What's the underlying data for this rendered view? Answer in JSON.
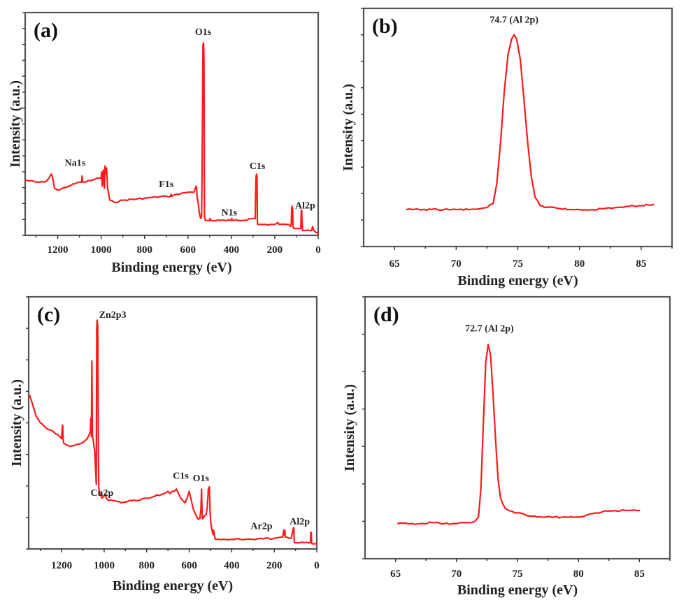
{
  "chart_data": [
    {
      "id": "a",
      "type": "line",
      "panel_label": "(a)",
      "title": "",
      "xlabel": "Binding energy (eV)",
      "ylabel": "Intensity (a.u.)",
      "xlim": [
        1350,
        0
      ],
      "ylim": [
        0,
        1
      ],
      "x_reversed": true,
      "xticks": [
        1200,
        1000,
        800,
        600,
        400,
        200,
        0
      ],
      "xticks_minor": [
        1300,
        1100,
        900,
        700,
        500,
        300,
        100
      ],
      "yticks_count": 14,
      "y_tick_labels": false,
      "grid": false,
      "series_color": "#ff1a1a",
      "series": [
        {
          "name": "survey-a",
          "x": [
            1350,
            1300,
            1260,
            1240,
            1230,
            1225,
            1215,
            1200,
            1150,
            1100,
            1090,
            1088,
            1085,
            1080,
            1040,
            1010,
            1000,
            998,
            995,
            990,
            985,
            982,
            980,
            975,
            970,
            965,
            960,
            940,
            900,
            800,
            700,
            680,
            678,
            675,
            650,
            600,
            580,
            572,
            566,
            562,
            560,
            558,
            552,
            548,
            542,
            537,
            535,
            533,
            531,
            528,
            526,
            524,
            520,
            510,
            500,
            498,
            496,
            490,
            450,
            420,
            400,
            398,
            396,
            390,
            350,
            300,
            290,
            288,
            286,
            284,
            282,
            280,
            278,
            275,
            270,
            240,
            200,
            185,
            180,
            175,
            150,
            135,
            128,
            124,
            122,
            120,
            118,
            116,
            112,
            100,
            90,
            82,
            80,
            78,
            76,
            74,
            72,
            70,
            60,
            40,
            30,
            28,
            26,
            20,
            10,
            5,
            0
          ],
          "y": [
            0.26,
            0.25,
            0.25,
            0.27,
            0.29,
            0.28,
            0.22,
            0.21,
            0.23,
            0.25,
            0.25,
            0.28,
            0.25,
            0.25,
            0.26,
            0.27,
            0.27,
            0.3,
            0.23,
            0.31,
            0.22,
            0.33,
            0.29,
            0.32,
            0.22,
            0.19,
            0.16,
            0.15,
            0.16,
            0.17,
            0.18,
            0.18,
            0.19,
            0.18,
            0.19,
            0.2,
            0.2,
            0.2,
            0.22,
            0.23,
            0.22,
            0.18,
            0.14,
            0.1,
            0.07,
            0.08,
            0.3,
            0.6,
            0.93,
            0.94,
            0.85,
            0.08,
            0.06,
            0.06,
            0.06,
            0.07,
            0.06,
            0.06,
            0.06,
            0.06,
            0.06,
            0.07,
            0.06,
            0.06,
            0.06,
            0.07,
            0.07,
            0.2,
            0.28,
            0.29,
            0.28,
            0.05,
            0.04,
            0.04,
            0.04,
            0.04,
            0.04,
            0.05,
            0.04,
            0.04,
            0.04,
            0.04,
            0.03,
            0.04,
            0.12,
            0.13,
            0.12,
            0.03,
            0.02,
            0.02,
            0.02,
            0.02,
            0.02,
            0.11,
            0.11,
            0.05,
            0.01,
            0.01,
            0.01,
            0.01,
            0.01,
            0.02,
            0.03,
            0.01,
            0.0,
            0.0,
            0.0
          ]
        }
      ],
      "annotations": [
        {
          "text": "O1s",
          "x": 530,
          "y": 0.98
        },
        {
          "text": "Na1s",
          "x": 1120,
          "y": 0.33
        },
        {
          "text": "F1s",
          "x": 700,
          "y": 0.225
        },
        {
          "text": "C1s",
          "x": 280,
          "y": 0.315
        },
        {
          "text": "N1s",
          "x": 410,
          "y": 0.085
        },
        {
          "text": "Al2p",
          "x": 60,
          "y": 0.12
        }
      ]
    },
    {
      "id": "b",
      "type": "line",
      "panel_label": "(b)",
      "title": "",
      "xlabel": "Binding energy (eV)",
      "ylabel": "Intensity (a.u.)",
      "xlim": [
        62.5,
        87.5
      ],
      "ylim": [
        0,
        1
      ],
      "x_reversed": false,
      "xticks": [
        65,
        70,
        75,
        80,
        85
      ],
      "xticks_minor": [
        67.5,
        72.5,
        77.5,
        82.5,
        87.5
      ],
      "yticks_count": 9,
      "y_tick_labels": false,
      "grid": false,
      "series_color": "#ff1a1a",
      "series": [
        {
          "name": "Al2p-b",
          "x": [
            66,
            67,
            68,
            69,
            70,
            71,
            72,
            72.5,
            73,
            73.3,
            73.6,
            73.9,
            74.2,
            74.5,
            74.7,
            74.9,
            75.2,
            75.5,
            75.8,
            76.1,
            76.4,
            76.8,
            77.2,
            78,
            79,
            80,
            81,
            82,
            83,
            84,
            85,
            86
          ],
          "y": [
            0.12,
            0.12,
            0.12,
            0.12,
            0.12,
            0.12,
            0.125,
            0.13,
            0.15,
            0.25,
            0.45,
            0.7,
            0.88,
            0.96,
            0.98,
            0.96,
            0.86,
            0.66,
            0.45,
            0.28,
            0.18,
            0.14,
            0.13,
            0.13,
            0.12,
            0.12,
            0.12,
            0.125,
            0.13,
            0.135,
            0.14,
            0.145
          ]
        }
      ],
      "annotations": [
        {
          "text": "74.7 (Al 2p)",
          "x": 74.7,
          "y": 1.04
        }
      ]
    },
    {
      "id": "c",
      "type": "line",
      "panel_label": "(c)",
      "title": "",
      "xlabel": "Binding energy (eV)",
      "ylabel": "Intensity (a.u.)",
      "xlim": [
        1355,
        0
      ],
      "ylim": [
        0,
        1
      ],
      "x_reversed": true,
      "xticks": [
        1200,
        1000,
        800,
        600,
        400,
        200,
        0
      ],
      "xticks_minor": [
        1300,
        1100,
        900,
        700,
        500,
        300,
        100
      ],
      "yticks_count": 8,
      "y_tick_labels": false,
      "grid": false,
      "series_color": "#ff1a1a",
      "series": [
        {
          "name": "survey-c",
          "x": [
            1355,
            1350,
            1340,
            1320,
            1300,
            1260,
            1220,
            1200,
            1197,
            1195,
            1193,
            1190,
            1170,
            1140,
            1110,
            1080,
            1070,
            1065,
            1063,
            1060,
            1058,
            1055,
            1052,
            1048,
            1045,
            1040,
            1037,
            1035,
            1033,
            1030,
            1027,
            1025,
            1022,
            1020,
            1015,
            1010,
            1000,
            995,
            990,
            980,
            960,
            920,
            880,
            840,
            800,
            760,
            720,
            700,
            690,
            680,
            670,
            660,
            650,
            640,
            630,
            620,
            610,
            600,
            595,
            590,
            585,
            580,
            570,
            560,
            550,
            545,
            542,
            540,
            538,
            535,
            530,
            520,
            515,
            510,
            505,
            502,
            500,
            498,
            495,
            490,
            488,
            485,
            482,
            480,
            478,
            475,
            470,
            460,
            440,
            400,
            300,
            250,
            200,
            160,
            155,
            152,
            150,
            148,
            145,
            130,
            120,
            110,
            108,
            106,
            104,
            102,
            100,
            98,
            90,
            80,
            60,
            40,
            30,
            28,
            26,
            24,
            22,
            20,
            10,
            0
          ],
          "y": [
            0.66,
            0.66,
            0.63,
            0.57,
            0.54,
            0.51,
            0.49,
            0.47,
            0.52,
            0.53,
            0.47,
            0.45,
            0.44,
            0.44,
            0.45,
            0.47,
            0.49,
            0.5,
            0.56,
            0.48,
            0.81,
            0.48,
            0.47,
            0.44,
            0.42,
            0.33,
            0.27,
            0.96,
            0.99,
            0.96,
            0.4,
            0.25,
            0.24,
            0.23,
            0.22,
            0.21,
            0.22,
            0.23,
            0.21,
            0.2,
            0.2,
            0.19,
            0.2,
            0.2,
            0.21,
            0.22,
            0.23,
            0.24,
            0.23,
            0.24,
            0.24,
            0.25,
            0.23,
            0.21,
            0.2,
            0.19,
            0.21,
            0.24,
            0.22,
            0.2,
            0.18,
            0.16,
            0.14,
            0.12,
            0.12,
            0.16,
            0.25,
            0.17,
            0.12,
            0.12,
            0.13,
            0.14,
            0.17,
            0.25,
            0.26,
            0.15,
            0.12,
            0.1,
            0.08,
            0.06,
            0.05,
            0.07,
            0.05,
            0.04,
            0.03,
            0.03,
            0.03,
            0.03,
            0.03,
            0.03,
            0.03,
            0.032,
            0.035,
            0.04,
            0.07,
            0.05,
            0.07,
            0.04,
            0.04,
            0.035,
            0.035,
            0.08,
            0.08,
            0.02,
            0.015,
            0.015,
            0.015,
            0.015,
            0.015,
            0.015,
            0.015,
            0.015,
            0.015,
            0.06,
            0.06,
            0.015,
            0.01,
            0.01,
            0.01,
            0.01
          ]
        }
      ],
      "annotations": [
        {
          "text": "Zn2p3",
          "x": 960,
          "y": 1.0
        },
        {
          "text": "Cu2p",
          "x": 1010,
          "y": 0.22
        },
        {
          "text": "C1s",
          "x": 640,
          "y": 0.295
        },
        {
          "text": "O1s",
          "x": 545,
          "y": 0.285
        },
        {
          "text": "Ar2p",
          "x": 260,
          "y": 0.075
        },
        {
          "text": "Al2p",
          "x": 80,
          "y": 0.095
        }
      ]
    },
    {
      "id": "d",
      "type": "line",
      "panel_label": "(d)",
      "title": "",
      "xlabel": "Binding energy (eV)",
      "ylabel": "Intensity (a.u.)",
      "xlim": [
        62.5,
        87.5
      ],
      "ylim": [
        0,
        1
      ],
      "x_reversed": false,
      "xticks": [
        65,
        70,
        75,
        80,
        85
      ],
      "xticks_minor": [
        67.5,
        72.5,
        77.5,
        82.5,
        87.5
      ],
      "yticks_count": 7,
      "y_tick_labels": false,
      "grid": false,
      "series_color": "#ff1a1a",
      "series": [
        {
          "name": "Al2p-d",
          "x": [
            65.2,
            66,
            67,
            68,
            69,
            70,
            71,
            71.5,
            71.8,
            72.0,
            72.2,
            72.4,
            72.6,
            72.8,
            73.0,
            73.2,
            73.4,
            73.6,
            73.8,
            74.0,
            74.3,
            74.6,
            75,
            76,
            77,
            78,
            79,
            80,
            80.5,
            81,
            82,
            83,
            84,
            85
          ],
          "y": [
            0.09,
            0.09,
            0.09,
            0.095,
            0.09,
            0.09,
            0.095,
            0.1,
            0.12,
            0.25,
            0.55,
            0.83,
            0.91,
            0.86,
            0.68,
            0.48,
            0.3,
            0.21,
            0.18,
            0.16,
            0.15,
            0.145,
            0.14,
            0.125,
            0.12,
            0.12,
            0.12,
            0.12,
            0.125,
            0.135,
            0.145,
            0.15,
            0.15,
            0.15
          ]
        }
      ],
      "annotations": [
        {
          "text": "72.7 (Al 2p)",
          "x": 72.7,
          "y": 0.97
        }
      ]
    }
  ]
}
